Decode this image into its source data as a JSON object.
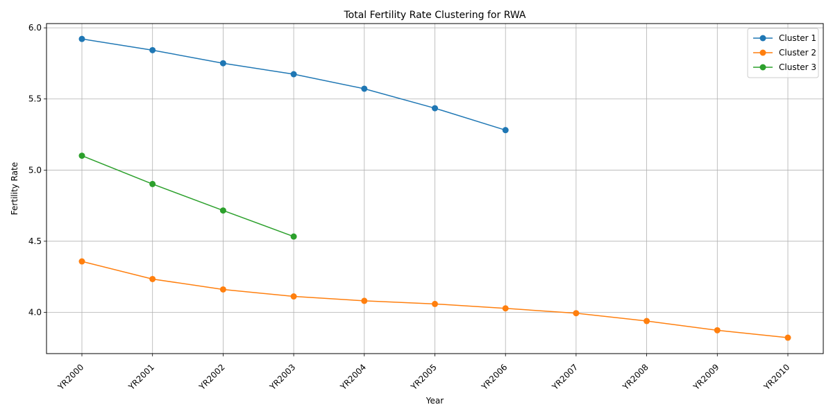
{
  "chart_data": {
    "type": "line",
    "title": "Total Fertility Rate Clustering for RWA",
    "xlabel": "Year",
    "ylabel": "Fertility Rate",
    "categories": [
      "YR2000",
      "YR2001",
      "YR2002",
      "YR2003",
      "YR2004",
      "YR2005",
      "YR2006",
      "YR2007",
      "YR2008",
      "YR2009",
      "YR2010"
    ],
    "ylim": [
      3.71,
      6.03
    ],
    "yticks": [
      "4.0",
      "4.5",
      "5.0",
      "5.5",
      "6.0"
    ],
    "grid": true,
    "legend_position": "top-right",
    "series": [
      {
        "name": "Cluster 1",
        "color": "#1f77b4",
        "values": [
          5.922,
          5.843,
          5.751,
          5.674,
          5.572,
          5.435,
          5.281,
          null,
          null,
          null,
          null
        ]
      },
      {
        "name": "Cluster 2",
        "color": "#ff7f0e",
        "values": [
          4.358,
          4.234,
          4.161,
          4.112,
          4.081,
          4.059,
          4.028,
          3.994,
          3.939,
          3.874,
          3.822
        ]
      },
      {
        "name": "Cluster 3",
        "color": "#2ca02c",
        "values": [
          5.101,
          4.902,
          4.716,
          4.533,
          null,
          null,
          null,
          null,
          null,
          null,
          null
        ]
      }
    ]
  }
}
